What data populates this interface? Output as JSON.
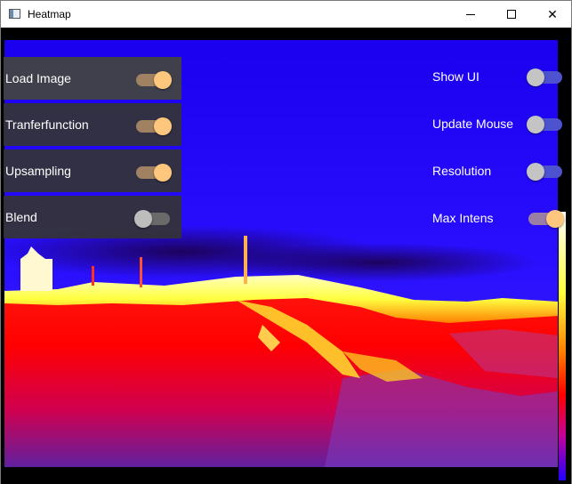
{
  "window": {
    "title": "Heatmap",
    "controls": {
      "minimize": "minimize",
      "maximize": "maximize",
      "close": "✕"
    }
  },
  "left_panel": {
    "items": [
      {
        "label": "Load Image",
        "enabled": true
      },
      {
        "label": "Tranferfunction",
        "enabled": true
      },
      {
        "label": "Upsampling",
        "enabled": true
      },
      {
        "label": "Blend",
        "enabled": false
      }
    ]
  },
  "right_panel": {
    "items": [
      {
        "label": "Show UI",
        "enabled": false
      },
      {
        "label": "Update Mouse",
        "enabled": false
      },
      {
        "label": "Resolution",
        "enabled": false
      },
      {
        "label": "Max Intens",
        "enabled": true
      }
    ]
  },
  "colors": {
    "toggle_on_track": "#a08262",
    "toggle_on_knob": "#ffc77e",
    "toggle_off_track": "#6a6a6a",
    "panel_bg": "#343434",
    "heat_cold": "#1400ff",
    "heat_warm": "#ff0000",
    "heat_hot": "#ffff80"
  },
  "icons": {
    "app": "window-app-icon"
  }
}
